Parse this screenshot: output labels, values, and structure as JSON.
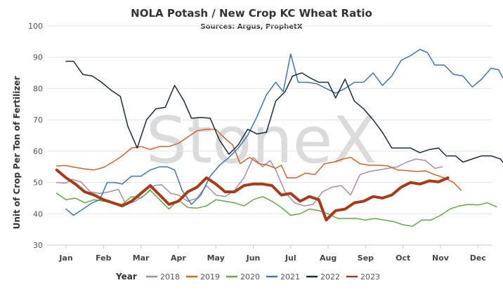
{
  "chart_data": {
    "type": "line",
    "title": "NOLA Potash / New Crop KC Wheat Ratio",
    "subtitle": "Sources: Argus, ProphetX",
    "ylabel": "Unit of Crop Per Ton of Fertilizer",
    "watermark": "StoneX",
    "ylim": [
      30,
      100
    ],
    "yticks": [
      30,
      40,
      50,
      60,
      70,
      80,
      90,
      100
    ],
    "xlim": [
      0,
      11.3
    ],
    "months": [
      "Jan",
      "Feb",
      "Mar",
      "Apr",
      "May",
      "Jun",
      "Jul",
      "Aug",
      "Sep",
      "Oct",
      "Nov",
      "Dec"
    ],
    "grid": true,
    "legend_title": "Year",
    "legend_position": "bottom",
    "series": [
      {
        "name": "2018",
        "color": "#a98aad",
        "width": 1.5,
        "points": [
          [
            -0.25,
            50.0
          ],
          [
            0,
            49.8
          ],
          [
            0.15,
            51.0
          ],
          [
            0.4,
            50.2
          ],
          [
            0.65,
            47.0
          ],
          [
            0.9,
            46.5
          ],
          [
            1.15,
            47.0
          ],
          [
            1.4,
            47.8
          ],
          [
            1.6,
            43.0
          ],
          [
            1.85,
            44.0
          ],
          [
            2.1,
            46.0
          ],
          [
            2.35,
            49.0
          ],
          [
            2.55,
            49.3
          ],
          [
            2.8,
            46.5
          ],
          [
            3.0,
            46.0
          ],
          [
            3.25,
            44.0
          ],
          [
            3.5,
            45.0
          ],
          [
            3.75,
            49.0
          ],
          [
            4.0,
            46.0
          ],
          [
            4.25,
            45.5
          ],
          [
            4.5,
            47.5
          ],
          [
            4.75,
            51.5
          ],
          [
            5.0,
            58.0
          ],
          [
            5.25,
            55.0
          ],
          [
            5.45,
            57.0
          ],
          [
            5.6,
            54.0
          ],
          [
            5.85,
            47.0
          ],
          [
            6.1,
            43.5
          ],
          [
            6.35,
            42.5
          ],
          [
            6.6,
            43.0
          ],
          [
            6.85,
            47.0
          ],
          [
            7.1,
            48.5
          ],
          [
            7.35,
            49.0
          ],
          [
            7.6,
            46.0
          ],
          [
            7.85,
            52.5
          ],
          [
            8.1,
            53.5
          ],
          [
            8.35,
            54.0
          ],
          [
            8.6,
            54.5
          ],
          [
            8.85,
            55.0
          ],
          [
            9.1,
            56.5
          ],
          [
            9.35,
            57.5
          ],
          [
            9.6,
            57.0
          ],
          [
            9.85,
            54.5
          ],
          [
            10.05,
            55.0
          ]
        ]
      },
      {
        "name": "2019",
        "color": "#d2622a",
        "width": 1.5,
        "points": [
          [
            -0.25,
            55.3
          ],
          [
            0,
            55.4
          ],
          [
            0.25,
            54.8
          ],
          [
            0.5,
            54.3
          ],
          [
            0.75,
            54.0
          ],
          [
            1.0,
            54.8
          ],
          [
            1.25,
            56.5
          ],
          [
            1.5,
            58.5
          ],
          [
            1.75,
            61.0
          ],
          [
            2.0,
            61.5
          ],
          [
            2.25,
            60.5
          ],
          [
            2.5,
            61.5
          ],
          [
            2.75,
            61.5
          ],
          [
            3.0,
            62.5
          ],
          [
            3.25,
            64.5
          ],
          [
            3.5,
            66.5
          ],
          [
            3.75,
            67.0
          ],
          [
            4.0,
            67.0
          ],
          [
            4.25,
            64.0
          ],
          [
            4.45,
            62.0
          ],
          [
            4.65,
            56.0
          ],
          [
            4.9,
            58.0
          ],
          [
            5.15,
            56.0
          ],
          [
            5.4,
            55.5
          ],
          [
            5.6,
            54.5
          ],
          [
            5.75,
            55.5
          ],
          [
            5.9,
            51.5
          ],
          [
            6.15,
            51.5
          ],
          [
            6.4,
            53.0
          ],
          [
            6.65,
            52.5
          ],
          [
            6.9,
            56.0
          ],
          [
            7.15,
            56.5
          ],
          [
            7.4,
            57.5
          ],
          [
            7.6,
            58.0
          ],
          [
            7.85,
            56.0
          ],
          [
            8.1,
            55.5
          ],
          [
            8.35,
            55.5
          ],
          [
            8.6,
            55.3
          ],
          [
            8.85,
            54.0
          ],
          [
            9.1,
            53.8
          ],
          [
            9.35,
            53.5
          ],
          [
            9.6,
            53.7
          ],
          [
            9.85,
            52.5
          ],
          [
            10.1,
            51.5
          ],
          [
            10.35,
            50.0
          ],
          [
            10.55,
            47.5
          ]
        ]
      },
      {
        "name": "2020",
        "color": "#63a84a",
        "width": 1.5,
        "points": [
          [
            -0.25,
            46.5
          ],
          [
            0,
            44.5
          ],
          [
            0.25,
            45.0
          ],
          [
            0.5,
            43.5
          ],
          [
            0.75,
            44.5
          ],
          [
            1.0,
            44.0
          ],
          [
            1.25,
            43.5
          ],
          [
            1.5,
            43.0
          ],
          [
            1.75,
            45.5
          ],
          [
            2.0,
            45.0
          ],
          [
            2.25,
            47.5
          ],
          [
            2.5,
            44.5
          ],
          [
            2.75,
            41.5
          ],
          [
            3.0,
            44.5
          ],
          [
            3.25,
            42.0
          ],
          [
            3.5,
            41.8
          ],
          [
            3.75,
            42.5
          ],
          [
            4.0,
            44.5
          ],
          [
            4.25,
            44.0
          ],
          [
            4.5,
            43.5
          ],
          [
            4.75,
            42.5
          ],
          [
            5.0,
            44.5
          ],
          [
            5.25,
            45.5
          ],
          [
            5.5,
            44.0
          ],
          [
            5.75,
            42.0
          ],
          [
            6.0,
            39.5
          ],
          [
            6.25,
            40.0
          ],
          [
            6.5,
            41.5
          ],
          [
            6.75,
            41.0
          ],
          [
            7.0,
            40.0
          ],
          [
            7.25,
            38.5
          ],
          [
            7.5,
            38.5
          ],
          [
            7.75,
            38.5
          ],
          [
            8.0,
            38.0
          ],
          [
            8.25,
            38.5
          ],
          [
            8.5,
            38.0
          ],
          [
            8.75,
            37.5
          ],
          [
            9.0,
            36.5
          ],
          [
            9.25,
            36.0
          ],
          [
            9.5,
            38.0
          ],
          [
            9.75,
            38.0
          ],
          [
            10.0,
            39.5
          ],
          [
            10.25,
            41.5
          ],
          [
            10.5,
            42.5
          ],
          [
            10.75,
            43.0
          ],
          [
            11.0,
            42.8
          ],
          [
            11.25,
            43.5
          ],
          [
            11.5,
            42.2
          ]
        ]
      },
      {
        "name": "2021",
        "color": "#3d75b5",
        "width": 1.5,
        "points": [
          [
            0,
            41.5
          ],
          [
            0.2,
            39.5
          ],
          [
            0.45,
            41.5
          ],
          [
            0.7,
            43.5
          ],
          [
            0.9,
            44.5
          ],
          [
            1.1,
            50.0
          ],
          [
            1.3,
            50.0
          ],
          [
            1.5,
            49.5
          ],
          [
            1.75,
            52.0
          ],
          [
            2.0,
            52.0
          ],
          [
            2.25,
            54.0
          ],
          [
            2.5,
            55.0
          ],
          [
            2.7,
            55.0
          ],
          [
            2.9,
            54.0
          ],
          [
            3.1,
            47.5
          ],
          [
            3.35,
            43.0
          ],
          [
            3.6,
            46.0
          ],
          [
            3.85,
            52.0
          ],
          [
            4.1,
            55.5
          ],
          [
            4.35,
            58.0
          ],
          [
            4.6,
            61.0
          ],
          [
            4.85,
            65.0
          ],
          [
            5.1,
            71.0
          ],
          [
            5.35,
            78.0
          ],
          [
            5.6,
            82.0
          ],
          [
            5.8,
            79.0
          ],
          [
            6.0,
            91.0
          ],
          [
            6.2,
            82.0
          ],
          [
            6.45,
            82.0
          ],
          [
            6.7,
            81.5
          ],
          [
            6.95,
            80.0
          ],
          [
            7.2,
            78.5
          ],
          [
            7.45,
            80.0
          ],
          [
            7.7,
            82.0
          ],
          [
            7.95,
            82.0
          ],
          [
            8.2,
            85.0
          ],
          [
            8.45,
            81.0
          ],
          [
            8.7,
            84.0
          ],
          [
            8.95,
            89.0
          ],
          [
            9.2,
            90.5
          ],
          [
            9.45,
            92.5
          ],
          [
            9.65,
            91.5
          ],
          [
            9.85,
            87.5
          ],
          [
            10.1,
            87.5
          ],
          [
            10.35,
            84.5
          ],
          [
            10.6,
            84.0
          ],
          [
            10.85,
            80.5
          ],
          [
            11.1,
            83.0
          ],
          [
            11.35,
            86.5
          ],
          [
            11.55,
            86.0
          ],
          [
            11.8,
            80.5
          ]
        ]
      },
      {
        "name": "2022",
        "color": "#1a2a40",
        "width": 1.5,
        "points": [
          [
            0,
            88.7
          ],
          [
            0.2,
            88.7
          ],
          [
            0.45,
            84.5
          ],
          [
            0.7,
            84.0
          ],
          [
            0.95,
            82.0
          ],
          [
            1.2,
            79.5
          ],
          [
            1.45,
            77.5
          ],
          [
            1.65,
            68.0
          ],
          [
            1.9,
            61.0
          ],
          [
            2.15,
            70.0
          ],
          [
            2.4,
            73.5
          ],
          [
            2.65,
            74.0
          ],
          [
            2.9,
            81.0
          ],
          [
            3.15,
            76.0
          ],
          [
            3.35,
            70.5
          ],
          [
            3.6,
            70.8
          ],
          [
            3.85,
            70.5
          ],
          [
            4.1,
            63.5
          ],
          [
            4.35,
            59.0
          ],
          [
            4.6,
            62.0
          ],
          [
            4.85,
            67.0
          ],
          [
            5.1,
            65.5
          ],
          [
            5.35,
            66.0
          ],
          [
            5.6,
            76.0
          ],
          [
            5.85,
            79.0
          ],
          [
            6.05,
            84.0
          ],
          [
            6.3,
            85.0
          ],
          [
            6.5,
            83.5
          ],
          [
            6.75,
            82.0
          ],
          [
            7.0,
            82.0
          ],
          [
            7.2,
            77.0
          ],
          [
            7.45,
            83.0
          ],
          [
            7.7,
            76.0
          ],
          [
            7.95,
            73.5
          ],
          [
            8.2,
            70.0
          ],
          [
            8.45,
            66.0
          ],
          [
            8.7,
            61.0
          ],
          [
            8.95,
            61.0
          ],
          [
            9.2,
            61.0
          ],
          [
            9.45,
            59.5
          ],
          [
            9.7,
            60.5
          ],
          [
            9.95,
            61.0
          ],
          [
            10.15,
            58.5
          ],
          [
            10.4,
            58.5
          ],
          [
            10.6,
            56.5
          ],
          [
            10.85,
            57.5
          ],
          [
            11.1,
            58.5
          ],
          [
            11.35,
            58.5
          ],
          [
            11.6,
            57.5
          ],
          [
            11.8,
            54.5
          ]
        ]
      },
      {
        "name": "2023",
        "color": "#a83a18",
        "width": 4,
        "points": [
          [
            -0.25,
            54.0
          ],
          [
            0,
            51.5
          ],
          [
            0.25,
            49.5
          ],
          [
            0.5,
            47.0
          ],
          [
            0.75,
            46.0
          ],
          [
            1.0,
            44.5
          ],
          [
            1.25,
            43.5
          ],
          [
            1.5,
            42.5
          ],
          [
            1.75,
            44.0
          ],
          [
            2.0,
            46.5
          ],
          [
            2.25,
            49.0
          ],
          [
            2.5,
            46.0
          ],
          [
            2.75,
            43.0
          ],
          [
            3.0,
            44.0
          ],
          [
            3.25,
            47.0
          ],
          [
            3.5,
            48.5
          ],
          [
            3.75,
            51.5
          ],
          [
            4.0,
            49.5
          ],
          [
            4.25,
            47.0
          ],
          [
            4.5,
            47.0
          ],
          [
            4.75,
            49.0
          ],
          [
            5.0,
            49.5
          ],
          [
            5.25,
            49.5
          ],
          [
            5.5,
            49.0
          ],
          [
            5.75,
            46.0
          ],
          [
            6.0,
            46.5
          ],
          [
            6.25,
            44.0
          ],
          [
            6.5,
            45.5
          ],
          [
            6.75,
            44.5
          ],
          [
            6.95,
            38.0
          ],
          [
            7.2,
            41.0
          ],
          [
            7.45,
            41.5
          ],
          [
            7.7,
            43.5
          ],
          [
            7.95,
            44.0
          ],
          [
            8.2,
            45.5
          ],
          [
            8.45,
            45.0
          ],
          [
            8.7,
            46.0
          ],
          [
            8.95,
            48.5
          ],
          [
            9.2,
            50.0
          ],
          [
            9.45,
            49.5
          ],
          [
            9.7,
            50.5
          ],
          [
            9.95,
            50.2
          ],
          [
            10.2,
            51.5
          ]
        ]
      }
    ]
  }
}
